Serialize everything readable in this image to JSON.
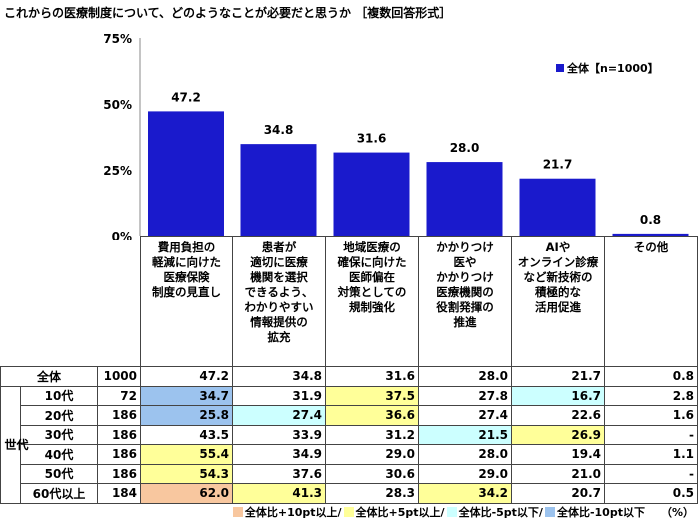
{
  "title": "これからの医療制度について、どのようなことが必要だと思うか ［複数回答形式］",
  "colors": {
    "bar": "#1a1acc",
    "plus10": "#f8c79f",
    "plus5": "#ffff99",
    "minus5": "#ccffff",
    "minus10": "#9cc3ee"
  },
  "chart_data": {
    "type": "bar",
    "categories": [
      "費用負担の軽減に向けた医療保険制度の見直し",
      "患者が適切に医療機関を選択できるよう、わかりやすい情報提供の拡充",
      "地域医療の確保に向けた医師偏在対策としての規制強化",
      "かかりつけ医やかかりつけ医療機関の役割発揮の推進",
      "AIやオンライン診療など新技術の積極的な活用促進",
      "その他"
    ],
    "category_lines": [
      [
        "費用負担の",
        "軽減に向けた",
        "医療保険",
        "制度の見直し"
      ],
      [
        "患者が",
        "適切に医療",
        "機関を選択",
        "できるよう、",
        "わかりやすい",
        "情報提供の",
        "拡充"
      ],
      [
        "地域医療の",
        "確保に向けた",
        "医師偏在",
        "対策としての",
        "規制強化"
      ],
      [
        "かかりつけ",
        "医や",
        "かかりつけ",
        "医療機関の",
        "役割発揮の",
        "推進"
      ],
      [
        "AIや",
        "オンライン診療",
        "など新技術の",
        "積極的な",
        "活用促進"
      ],
      [
        "その他"
      ]
    ],
    "series": [
      {
        "name": "全体【n=1000】",
        "values": [
          47.2,
          34.8,
          31.6,
          28.0,
          21.7,
          0.8
        ]
      }
    ],
    "value_labels": [
      "47.2",
      "34.8",
      "31.6",
      "28.0",
      "21.7",
      "0.8"
    ],
    "yticks": [
      "0%",
      "25%",
      "50%",
      "75%"
    ],
    "ylim": [
      0,
      75
    ],
    "legend_placement": "top-right",
    "grid": false
  },
  "table": {
    "group_label": "世代",
    "total": {
      "label": "全体",
      "n": "1000",
      "values": [
        "47.2",
        "34.8",
        "31.6",
        "28.0",
        "21.7",
        "0.8"
      ]
    },
    "rows": [
      {
        "label": "10代",
        "n": "72",
        "values": [
          "34.7",
          "31.9",
          "37.5",
          "27.8",
          "16.7",
          "2.8"
        ],
        "hl": [
          "minus10",
          "",
          "plus5",
          "",
          "minus5",
          ""
        ]
      },
      {
        "label": "20代",
        "n": "186",
        "values": [
          "25.8",
          "27.4",
          "36.6",
          "27.4",
          "22.6",
          "1.6"
        ],
        "hl": [
          "minus10",
          "minus5",
          "plus5",
          "",
          "",
          ""
        ]
      },
      {
        "label": "30代",
        "n": "186",
        "values": [
          "43.5",
          "33.9",
          "31.2",
          "21.5",
          "26.9",
          "-"
        ],
        "hl": [
          "",
          "",
          "",
          "minus5",
          "plus5",
          ""
        ]
      },
      {
        "label": "40代",
        "n": "186",
        "values": [
          "55.4",
          "34.9",
          "29.0",
          "28.0",
          "19.4",
          "1.1"
        ],
        "hl": [
          "plus5",
          "",
          "",
          "",
          "",
          ""
        ]
      },
      {
        "label": "50代",
        "n": "186",
        "values": [
          "54.3",
          "37.6",
          "30.6",
          "29.0",
          "21.0",
          "-"
        ],
        "hl": [
          "plus5",
          "",
          "",
          "",
          "",
          ""
        ]
      },
      {
        "label": "60代以上",
        "n": "184",
        "values": [
          "62.0",
          "41.3",
          "28.3",
          "34.2",
          "20.7",
          "0.5"
        ],
        "hl": [
          "plus10",
          "plus5",
          "",
          "plus5",
          "",
          ""
        ]
      }
    ]
  },
  "footer": {
    "plus10": "全体比+10pt以上/",
    "plus5": "全体比+5pt以上/",
    "minus5": "全体比-5pt以下/",
    "minus10": "全体比-10pt以下",
    "unit": "（%）"
  }
}
